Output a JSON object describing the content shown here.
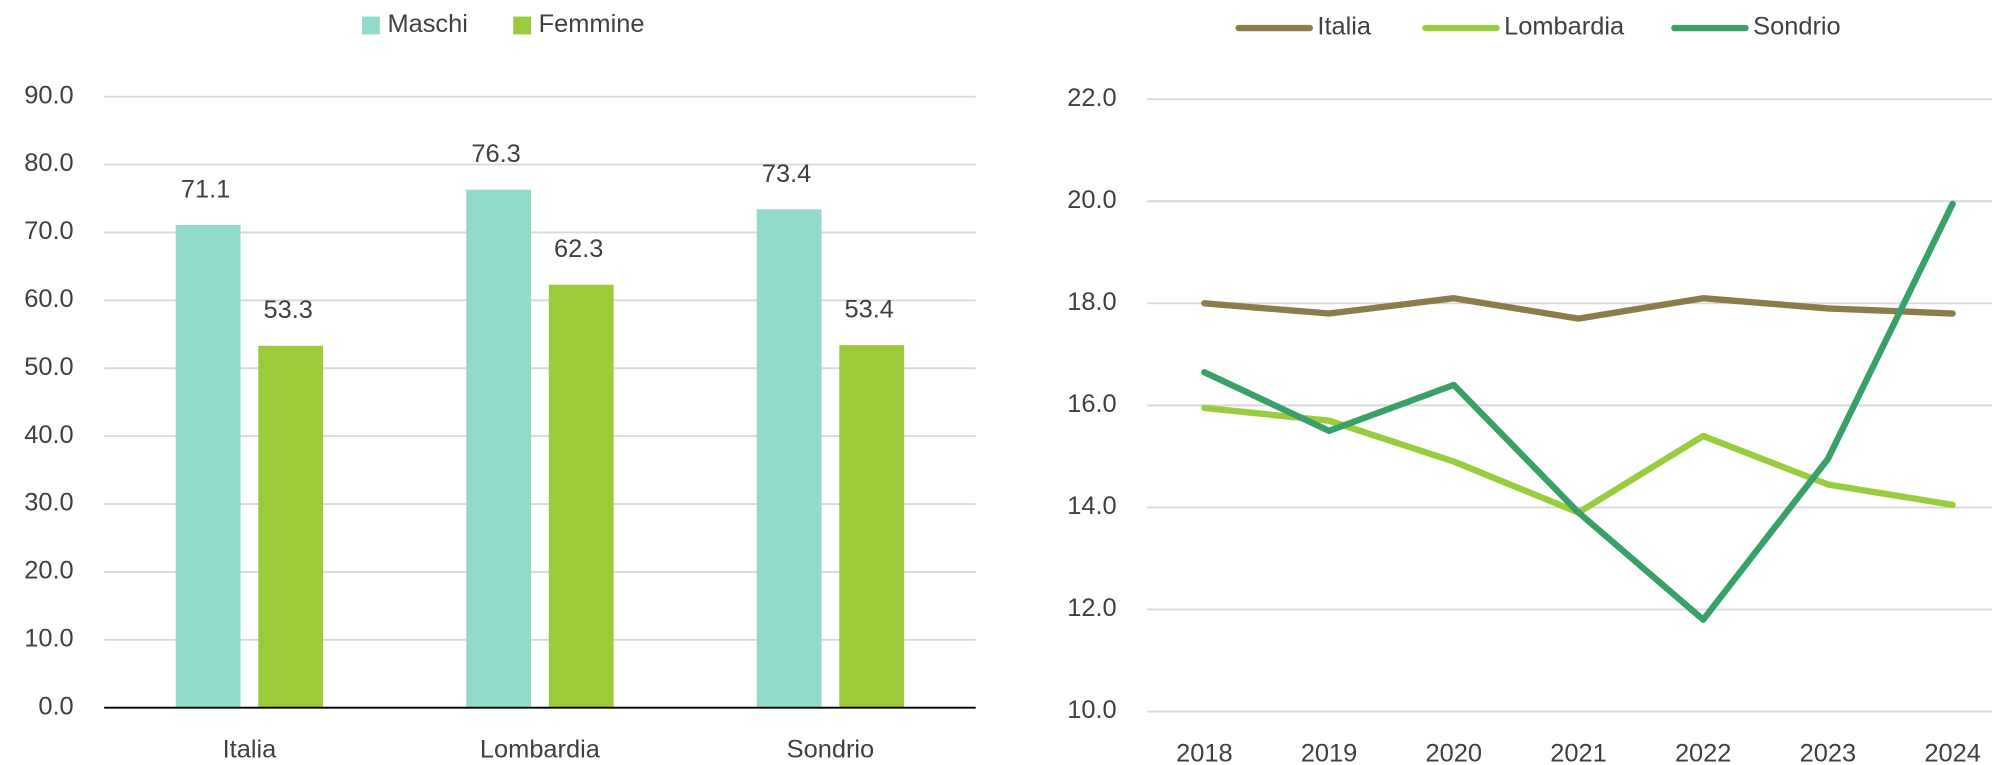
{
  "chart_data": [
    {
      "type": "bar",
      "categories": [
        "Italia",
        "Lombardia",
        "Sondrio"
      ],
      "series": [
        {
          "name": "Maschi",
          "color": "#92dbca",
          "values": [
            71.1,
            76.3,
            73.4
          ]
        },
        {
          "name": "Femmine",
          "color": "#9bca3a",
          "values": [
            53.3,
            62.3,
            53.4
          ]
        }
      ],
      "ylim": [
        0,
        90
      ],
      "yticks": [
        {
          "value": 0,
          "label": "0.0"
        },
        {
          "value": 10,
          "label": "10.0"
        },
        {
          "value": 20,
          "label": "20.0"
        },
        {
          "value": 30,
          "label": "30.0"
        },
        {
          "value": 40,
          "label": "40.0"
        },
        {
          "value": 50,
          "label": "50.0"
        },
        {
          "value": 60,
          "label": "60.0"
        },
        {
          "value": 70,
          "label": "70.0"
        },
        {
          "value": 80,
          "label": "80.0"
        },
        {
          "value": 90,
          "label": "90.0"
        }
      ],
      "grid": true,
      "legend": "top"
    },
    {
      "type": "line",
      "categories": [
        "2018",
        "2019",
        "2020",
        "2021",
        "2022",
        "2023",
        "2024"
      ],
      "series": [
        {
          "name": "Italia",
          "color": "#8b7d4b",
          "values": [
            18.0,
            17.8,
            18.1,
            17.7,
            18.1,
            17.9,
            17.8
          ]
        },
        {
          "name": "Lombardia",
          "color": "#9acd3e",
          "values": [
            15.95,
            15.7,
            14.9,
            13.9,
            15.4,
            14.45,
            14.05
          ]
        },
        {
          "name": "Sondrio",
          "color": "#3aa06a",
          "values": [
            16.65,
            15.5,
            16.4,
            13.9,
            11.8,
            14.95,
            19.95
          ]
        }
      ],
      "ylim": [
        10,
        22
      ],
      "yticks": [
        {
          "value": 10,
          "label": "10.0"
        },
        {
          "value": 12,
          "label": "12.0"
        },
        {
          "value": 14,
          "label": "14.0"
        },
        {
          "value": 16,
          "label": "16.0"
        },
        {
          "value": 18,
          "label": "18.0"
        },
        {
          "value": 20,
          "label": "20.0"
        },
        {
          "value": 22,
          "label": "22.0"
        }
      ],
      "grid": true,
      "legend": "top"
    }
  ]
}
